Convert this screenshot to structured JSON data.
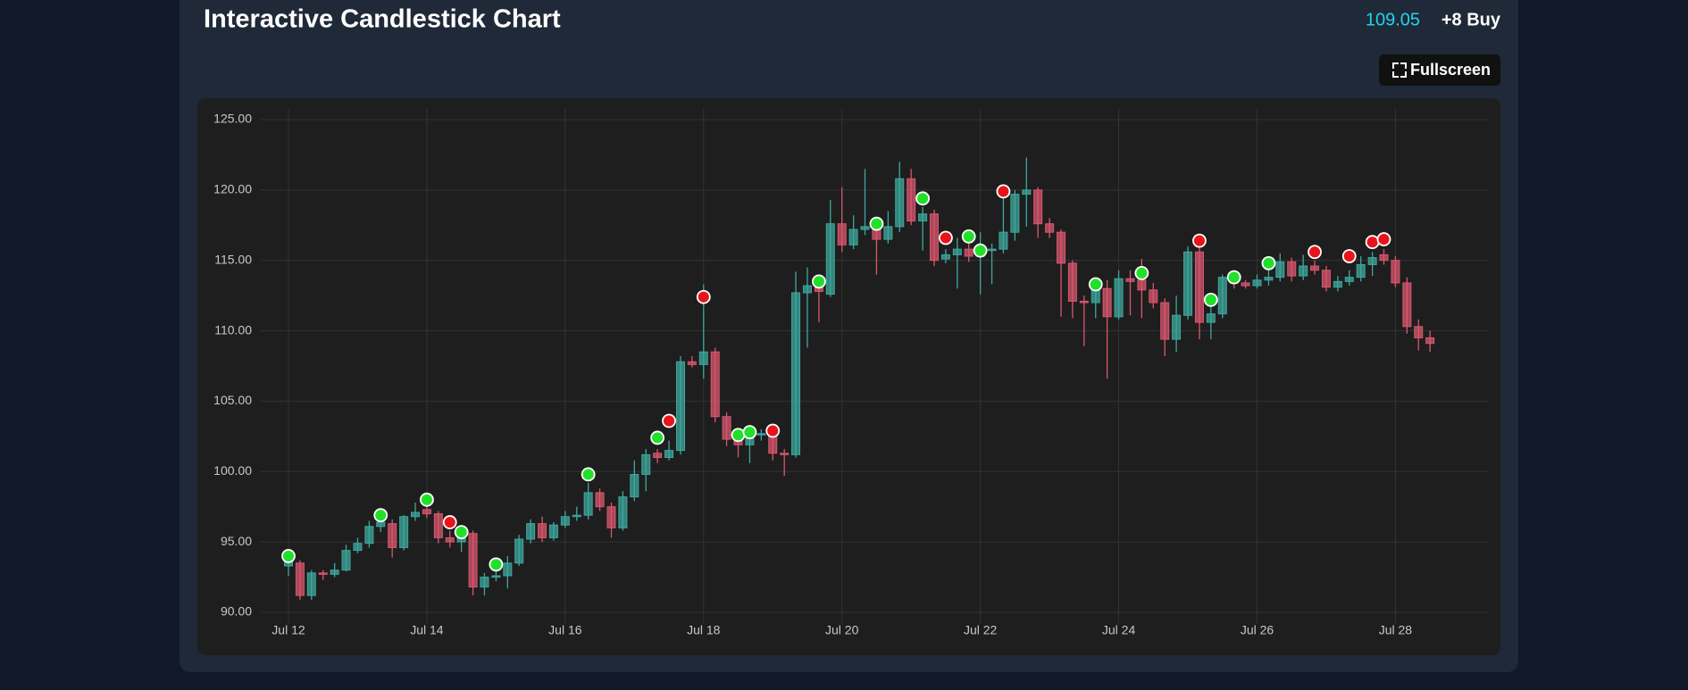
{
  "chart_data": {
    "type": "candlestick",
    "title": "Interactive Candlestick Chart",
    "last_price": 109.05,
    "signal": "+8 Buy",
    "button": "Fullscreen",
    "up_color": "#3ea89e",
    "down_color": "#d9576f",
    "grid": true,
    "ylim": [
      90,
      125
    ],
    "xlim": [
      11.6,
      29.35
    ],
    "yticks": [
      {
        "value": 90,
        "label": "90.00"
      },
      {
        "value": 95,
        "label": "95.00"
      },
      {
        "value": 100,
        "label": "100.00"
      },
      {
        "value": 105,
        "label": "105.00"
      },
      {
        "value": 110,
        "label": "110.00"
      },
      {
        "value": 115,
        "label": "115.00"
      },
      {
        "value": 120,
        "label": "120.00"
      },
      {
        "value": 125,
        "label": "125.00"
      }
    ],
    "xticks": [
      {
        "value": 12,
        "label": "Jul 12"
      },
      {
        "value": 14,
        "label": "Jul 14"
      },
      {
        "value": 16,
        "label": "Jul 16"
      },
      {
        "value": 18,
        "label": "Jul 18"
      },
      {
        "value": 20,
        "label": "Jul 20"
      },
      {
        "value": 22,
        "label": "Jul 22"
      },
      {
        "value": 24,
        "label": "Jul 24"
      },
      {
        "value": 26,
        "label": "Jul 26"
      },
      {
        "value": 28,
        "label": "Jul 28"
      }
    ],
    "x": [
      12,
      12.167,
      12.333,
      12.5,
      12.667,
      12.833,
      13,
      13.167,
      13.333,
      13.5,
      13.667,
      13.833,
      14,
      14.167,
      14.333,
      14.5,
      14.667,
      14.833,
      15,
      15.167,
      15.333,
      15.5,
      15.667,
      15.833,
      16,
      16.167,
      16.333,
      16.5,
      16.667,
      16.833,
      17,
      17.167,
      17.333,
      17.5,
      17.667,
      17.833,
      18,
      18.167,
      18.333,
      18.5,
      18.667,
      18.833,
      19,
      19.167,
      19.333,
      19.5,
      19.667,
      19.833,
      20,
      20.167,
      20.333,
      20.5,
      20.667,
      20.833,
      21,
      21.167,
      21.333,
      21.5,
      21.667,
      21.833,
      22,
      22.167,
      22.333,
      22.5,
      22.667,
      22.833,
      23,
      23.167,
      23.333,
      23.5,
      23.667,
      23.833,
      24,
      24.167,
      24.333,
      24.5,
      24.667,
      24.833,
      25,
      25.167,
      25.333,
      25.5,
      25.667,
      25.833,
      26,
      26.167,
      26.333,
      26.5,
      26.667,
      26.833,
      27,
      27.167,
      27.333,
      27.5,
      27.667,
      27.833,
      28,
      28.167,
      28.333,
      28.5
    ],
    "open": [
      93.3,
      93.5,
      91.2,
      92.8,
      92.7,
      93.0,
      94.4,
      94.9,
      96.1,
      96.3,
      94.6,
      96.8,
      97.3,
      97.0,
      95.3,
      95.0,
      95.6,
      91.8,
      92.5,
      92.6,
      93.5,
      95.2,
      96.3,
      95.3,
      96.2,
      96.8,
      96.9,
      98.5,
      97.5,
      96.0,
      98.2,
      99.8,
      101.3,
      101.0,
      101.5,
      107.8,
      107.6,
      108.5,
      103.9,
      102.3,
      101.9,
      102.6,
      102.7,
      101.3,
      101.2,
      112.7,
      113.3,
      112.6,
      117.6,
      116.1,
      117.2,
      117.4,
      116.5,
      117.4,
      120.8,
      117.8,
      118.3,
      115.1,
      115.4,
      115.8,
      115.3,
      115.7,
      115.8,
      117.0,
      119.7,
      120.0,
      117.6,
      117.0,
      114.8,
      112.1,
      112.0,
      113.0,
      111.0,
      113.7,
      113.6,
      112.9,
      112.0,
      109.4,
      111.1,
      115.6,
      110.6,
      111.2,
      113.8,
      113.4,
      113.2,
      113.6,
      113.8,
      114.9,
      113.9,
      114.6,
      114.3,
      113.1,
      113.5,
      113.8,
      114.7,
      115.4,
      115.0,
      113.4,
      110.3,
      109.5
    ],
    "high": [
      93.9,
      93.7,
      93.0,
      93.0,
      93.5,
      94.8,
      95.3,
      96.5,
      97.2,
      96.6,
      96.9,
      97.8,
      97.6,
      97.2,
      95.8,
      96.0,
      95.8,
      92.8,
      93.2,
      94.0,
      95.5,
      96.6,
      96.8,
      96.4,
      97.2,
      97.5,
      99.2,
      98.8,
      97.8,
      98.6,
      100.8,
      101.6,
      101.6,
      102.2,
      108.2,
      108.2,
      113.3,
      108.8,
      104.2,
      102.8,
      103.3,
      103.0,
      103.0,
      101.6,
      114.2,
      114.5,
      113.6,
      119.3,
      120.2,
      118.2,
      121.5,
      118.0,
      118.5,
      122.0,
      121.5,
      118.8,
      118.6,
      115.8,
      116.6,
      117.2,
      117.0,
      116.2,
      119.6,
      120.0,
      122.3,
      120.2,
      118.0,
      117.2,
      115.0,
      112.5,
      113.4,
      113.6,
      114.3,
      114.3,
      115.1,
      113.4,
      112.3,
      112.5,
      116.0,
      116.1,
      112.0,
      114.0,
      114.2,
      113.6,
      114.0,
      114.4,
      115.5,
      115.2,
      115.4,
      115.0,
      114.6,
      113.9,
      114.3,
      115.3,
      115.6,
      115.8,
      115.3,
      113.8,
      110.8,
      110.0
    ],
    "low": [
      92.6,
      90.9,
      90.9,
      92.3,
      92.5,
      92.9,
      94.2,
      94.6,
      95.7,
      93.9,
      94.4,
      96.5,
      96.7,
      94.9,
      94.6,
      94.3,
      91.2,
      91.2,
      92.2,
      91.7,
      93.3,
      94.9,
      95.0,
      95.1,
      96.0,
      96.5,
      96.6,
      97.2,
      95.3,
      95.8,
      97.9,
      98.6,
      100.6,
      100.8,
      101.2,
      107.4,
      106.6,
      103.5,
      101.8,
      101.0,
      100.6,
      102.2,
      100.8,
      99.7,
      101.0,
      108.8,
      110.6,
      112.4,
      115.6,
      115.8,
      116.8,
      114.0,
      116.2,
      117.0,
      117.5,
      115.7,
      114.6,
      114.8,
      113.0,
      114.9,
      112.6,
      113.3,
      115.5,
      116.4,
      117.4,
      116.6,
      116.6,
      111.0,
      110.9,
      108.9,
      110.9,
      106.6,
      110.8,
      111.1,
      110.9,
      111.6,
      108.2,
      108.5,
      110.8,
      109.4,
      109.4,
      110.9,
      113.0,
      113.0,
      113.0,
      113.2,
      113.5,
      113.5,
      113.6,
      114.0,
      112.8,
      112.8,
      113.2,
      113.5,
      113.9,
      114.7,
      113.1,
      109.8,
      108.6,
      108.5
    ],
    "close": [
      93.6,
      91.2,
      92.8,
      92.7,
      93.0,
      94.4,
      94.9,
      96.1,
      96.4,
      94.6,
      96.8,
      97.1,
      97.0,
      95.3,
      95.0,
      95.6,
      91.8,
      92.5,
      92.6,
      93.5,
      95.2,
      96.3,
      95.3,
      96.2,
      96.8,
      96.9,
      98.5,
      97.5,
      96.0,
      98.2,
      99.8,
      101.2,
      101.0,
      101.5,
      107.8,
      107.6,
      108.5,
      103.9,
      102.3,
      101.9,
      102.6,
      102.7,
      101.3,
      101.2,
      112.7,
      113.2,
      112.8,
      117.6,
      116.1,
      117.2,
      117.4,
      116.5,
      117.4,
      120.8,
      117.8,
      118.3,
      115.0,
      115.4,
      115.8,
      115.3,
      115.7,
      115.8,
      117.0,
      119.7,
      120.0,
      117.6,
      117.0,
      114.8,
      112.1,
      112.0,
      113.0,
      111.0,
      113.7,
      113.5,
      112.9,
      112.0,
      109.4,
      111.1,
      115.6,
      110.6,
      111.2,
      113.8,
      113.4,
      113.2,
      113.6,
      113.8,
      114.9,
      113.9,
      114.6,
      114.3,
      113.1,
      113.5,
      113.8,
      114.7,
      115.2,
      115.0,
      113.4,
      110.3,
      109.5,
      109.1
    ],
    "markers": [
      {
        "x": 12,
        "y": 94.0,
        "color": "#22e02a"
      },
      {
        "x": 13.333,
        "y": 96.9,
        "color": "#22e02a"
      },
      {
        "x": 14,
        "y": 98.0,
        "color": "#22e02a"
      },
      {
        "x": 14.333,
        "y": 96.4,
        "color": "#e8141c"
      },
      {
        "x": 14.5,
        "y": 95.7,
        "color": "#22e02a"
      },
      {
        "x": 15,
        "y": 93.4,
        "color": "#22e02a"
      },
      {
        "x": 16.333,
        "y": 99.8,
        "color": "#22e02a"
      },
      {
        "x": 17.333,
        "y": 102.4,
        "color": "#22e02a"
      },
      {
        "x": 17.5,
        "y": 103.6,
        "color": "#e8141c"
      },
      {
        "x": 18,
        "y": 112.4,
        "color": "#e8141c"
      },
      {
        "x": 18.5,
        "y": 102.6,
        "color": "#22e02a"
      },
      {
        "x": 18.667,
        "y": 102.8,
        "color": "#22e02a"
      },
      {
        "x": 19,
        "y": 102.9,
        "color": "#e8141c"
      },
      {
        "x": 19.667,
        "y": 113.5,
        "color": "#22e02a"
      },
      {
        "x": 20.5,
        "y": 117.6,
        "color": "#22e02a"
      },
      {
        "x": 21.167,
        "y": 119.4,
        "color": "#22e02a"
      },
      {
        "x": 21.5,
        "y": 116.6,
        "color": "#e8141c"
      },
      {
        "x": 21.833,
        "y": 116.7,
        "color": "#22e02a"
      },
      {
        "x": 22,
        "y": 115.7,
        "color": "#22e02a"
      },
      {
        "x": 22.333,
        "y": 119.9,
        "color": "#e8141c"
      },
      {
        "x": 23.667,
        "y": 113.3,
        "color": "#22e02a"
      },
      {
        "x": 24.333,
        "y": 114.1,
        "color": "#22e02a"
      },
      {
        "x": 25.167,
        "y": 116.4,
        "color": "#e8141c"
      },
      {
        "x": 25.333,
        "y": 112.2,
        "color": "#22e02a"
      },
      {
        "x": 25.667,
        "y": 113.8,
        "color": "#22e02a"
      },
      {
        "x": 26.167,
        "y": 114.8,
        "color": "#22e02a"
      },
      {
        "x": 26.833,
        "y": 115.6,
        "color": "#e8141c"
      },
      {
        "x": 27.333,
        "y": 115.3,
        "color": "#e8141c"
      },
      {
        "x": 27.667,
        "y": 116.3,
        "color": "#e8141c"
      },
      {
        "x": 27.833,
        "y": 116.5,
        "color": "#e8141c"
      }
    ]
  }
}
